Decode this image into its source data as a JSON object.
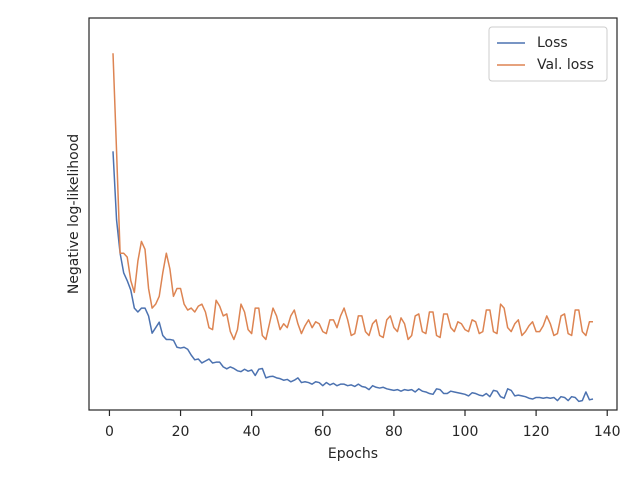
{
  "chart_data": {
    "type": "line",
    "xlabel": "Epochs",
    "ylabel": "Negative log-likelihood",
    "x": [
      1,
      2,
      3,
      4,
      5,
      6,
      7,
      8,
      9,
      10,
      11,
      12,
      13,
      14,
      15,
      16,
      17,
      18,
      19,
      20,
      21,
      22,
      23,
      24,
      25,
      26,
      27,
      28,
      29,
      30,
      31,
      32,
      33,
      34,
      35,
      36,
      37,
      38,
      39,
      40,
      41,
      42,
      43,
      44,
      45,
      46,
      47,
      48,
      49,
      50,
      51,
      52,
      53,
      54,
      55,
      56,
      57,
      58,
      59,
      60,
      61,
      62,
      63,
      64,
      65,
      66,
      67,
      68,
      69,
      70,
      71,
      72,
      73,
      74,
      75,
      76,
      77,
      78,
      79,
      80,
      81,
      82,
      83,
      84,
      85,
      86,
      87,
      88,
      89,
      90,
      91,
      92,
      93,
      94,
      95,
      96,
      97,
      98,
      99,
      100,
      101,
      102,
      103,
      104,
      105,
      106,
      107,
      108,
      109,
      110,
      111,
      112,
      113,
      114,
      115,
      116,
      117,
      118,
      119,
      120,
      121,
      122,
      123,
      124,
      125,
      126,
      127,
      128,
      129,
      130,
      131,
      132,
      133,
      134,
      135,
      136
    ],
    "series": [
      {
        "name": "Loss",
        "color": "#4c72b0",
        "values": [
          66,
          48.5,
          40,
          35,
          33,
          30.6,
          26,
          25,
          26,
          26,
          24,
          19.6,
          21,
          22.4,
          19,
          18,
          18,
          17.8,
          16,
          15.8,
          16,
          15.5,
          14,
          12.8,
          13,
          12,
          12.5,
          13,
          12,
          12.2,
          12.2,
          11,
          10.5,
          11,
          10.6,
          10,
          9.8,
          10.4,
          9.9,
          10.2,
          8.8,
          10.4,
          10.6,
          8.2,
          8.5,
          8.6,
          8.2,
          8,
          7.6,
          7.8,
          7.2,
          7.6,
          8.2,
          7,
          7.2,
          7,
          6.6,
          7.2,
          7,
          6.2,
          7,
          6.4,
          6.8,
          6.2,
          6.6,
          6.6,
          6.2,
          6.4,
          6,
          6.6,
          6,
          5.8,
          5.2,
          6.2,
          5.8,
          5.6,
          5.8,
          5.4,
          5.2,
          5,
          5.2,
          4.8,
          5.2,
          5,
          5.2,
          4.6,
          5.4,
          4.8,
          4.6,
          4.2,
          4,
          5.4,
          5.2,
          4.2,
          4.2,
          4.8,
          4.6,
          4.4,
          4.2,
          4,
          3.6,
          4.4,
          4.2,
          3.8,
          3.6,
          4.2,
          3.4,
          5,
          4.8,
          3.4,
          3,
          5.4,
          5,
          3.6,
          3.8,
          3.6,
          3.4,
          3,
          2.8,
          3.2,
          3.2,
          3,
          3.2,
          3,
          3.2,
          2.4,
          3.4,
          3.2,
          2.4,
          3.4,
          3.2,
          2.2,
          2.4,
          4.6,
          2.6,
          2.8
        ]
      },
      {
        "name": "Val. loss",
        "color": "#dd8452",
        "values": [
          91,
          66,
          40,
          40,
          39,
          33,
          30,
          38,
          43,
          41,
          31,
          26,
          27,
          29,
          35,
          40,
          36,
          29,
          31,
          31,
          27,
          25.5,
          26,
          25,
          26.5,
          27,
          25,
          21,
          20.5,
          28,
          26.5,
          24,
          24.5,
          20,
          18,
          20.5,
          27,
          25,
          20.5,
          19.5,
          26,
          26,
          19,
          18,
          22,
          26,
          24,
          20.5,
          22,
          21,
          24,
          25.5,
          22,
          19.5,
          21.5,
          23,
          21,
          22.5,
          22,
          20,
          19.5,
          23,
          23,
          21,
          24,
          26,
          23,
          19,
          19.5,
          24,
          24,
          20,
          19,
          22,
          23,
          19,
          18.5,
          23,
          24,
          21,
          20,
          23.5,
          22,
          18,
          19,
          24,
          24.5,
          20,
          19.5,
          25,
          25,
          19,
          18.5,
          24.5,
          24.5,
          21,
          20,
          22.5,
          22,
          20.5,
          20,
          23,
          22.5,
          19.5,
          20,
          25.5,
          25.5,
          20,
          19.5,
          27,
          26,
          21,
          20,
          22,
          23,
          19,
          20,
          21.5,
          22.5,
          20,
          20,
          21.5,
          24,
          22,
          19,
          19.5,
          24,
          24.5,
          19.5,
          19,
          25.5,
          25.5,
          20,
          19,
          22.5,
          22.5
        ]
      }
    ],
    "xlim": [
      -5.75,
      142.75
    ],
    "xticks": [
      0,
      20,
      40,
      60,
      80,
      100,
      120,
      140
    ],
    "ylim": [
      0,
      100
    ],
    "legend": "upper right",
    "grid": false
  }
}
